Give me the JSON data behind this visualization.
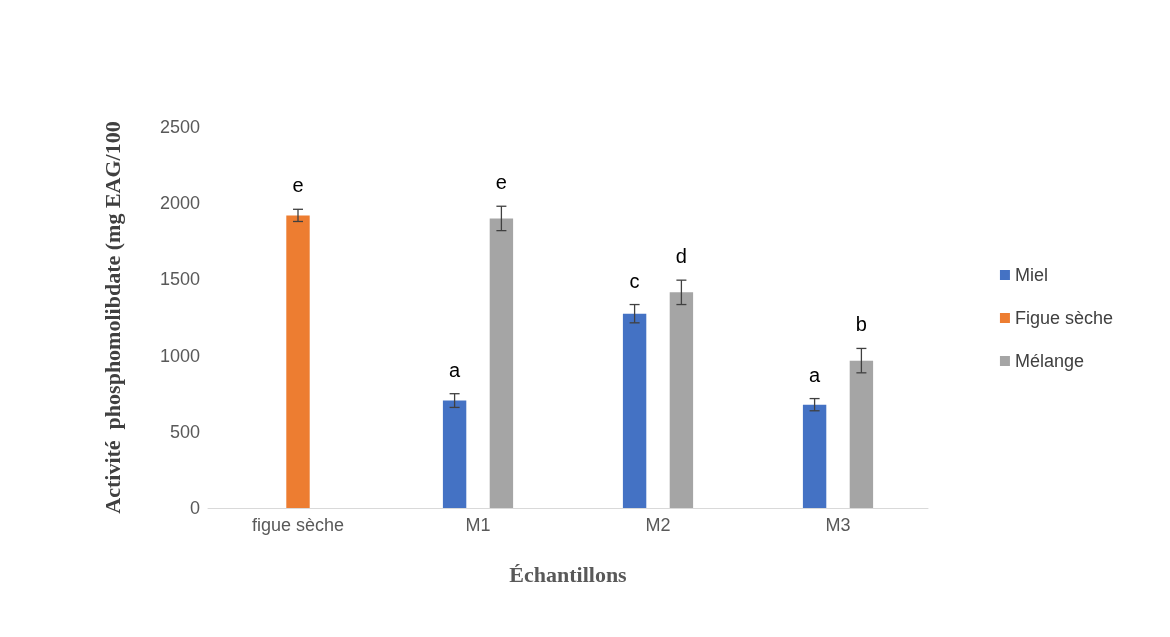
{
  "chart_data": {
    "type": "bar",
    "xlabel": "Échantillons",
    "ylabel": "Activité  phosphomolibdate (mg EAG/100",
    "categories": [
      "figue sèche",
      "M1",
      "M2",
      "M3"
    ],
    "series": [
      {
        "name": "Miel",
        "color": "#4472c4",
        "values": [
          null,
          705,
          1275,
          678
        ],
        "errors": [
          null,
          45,
          60,
          40
        ],
        "value_labels": [
          null,
          "a",
          "c",
          "a"
        ]
      },
      {
        "name": "Figue sèche",
        "color": "#ed7d31",
        "values": [
          1920,
          null,
          null,
          null
        ],
        "errors": [
          40,
          null,
          null,
          null
        ],
        "value_labels": [
          "e",
          null,
          null,
          null
        ]
      },
      {
        "name": "Mélange",
        "color": "#a5a5a5",
        "values": [
          null,
          1900,
          1415,
          967
        ],
        "errors": [
          null,
          80,
          80,
          80
        ],
        "value_labels": [
          null,
          "e",
          "d",
          "b"
        ]
      }
    ],
    "ylim": [
      0,
      2500
    ],
    "yticks": [
      0,
      500,
      1000,
      1500,
      2000,
      2500
    ],
    "grid": false,
    "legend": "right"
  }
}
